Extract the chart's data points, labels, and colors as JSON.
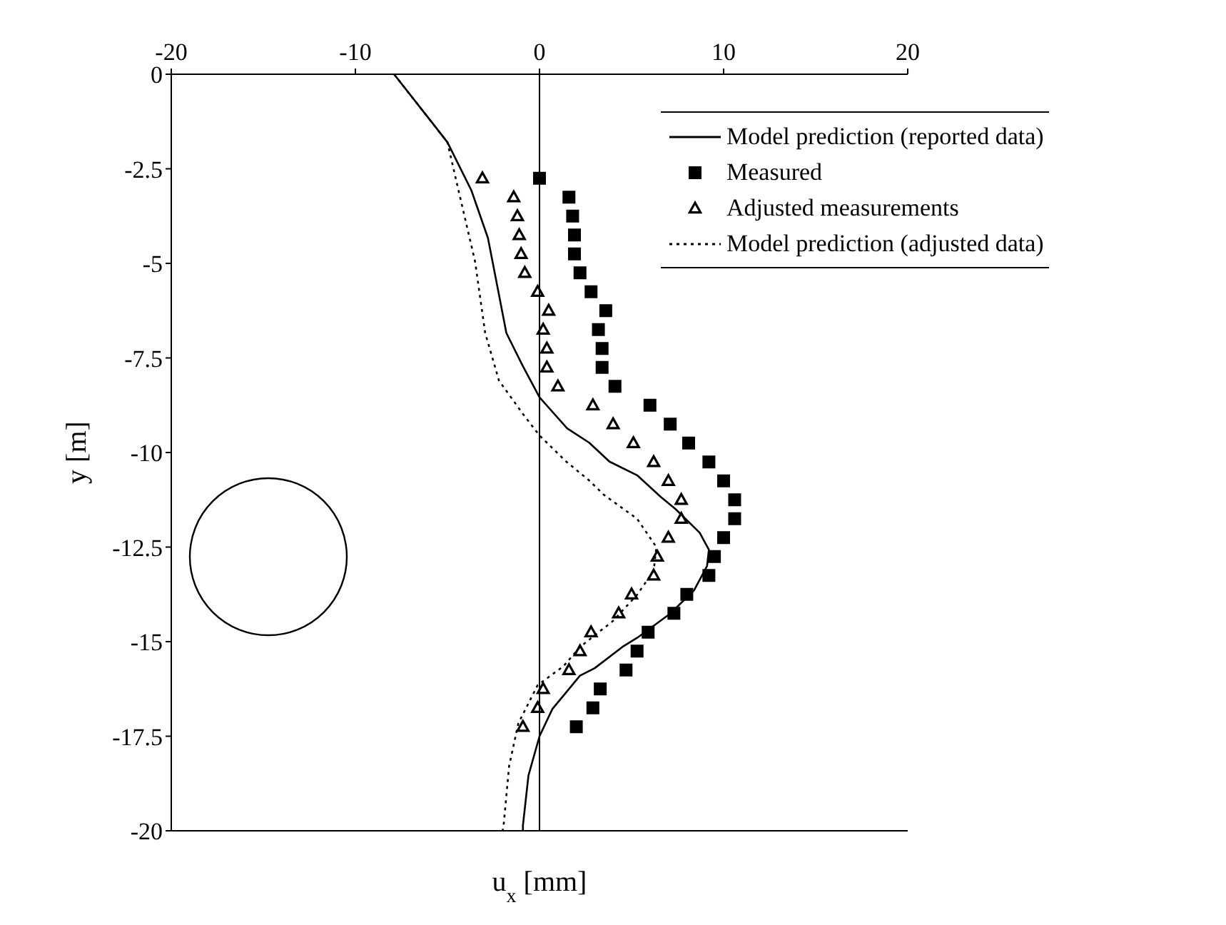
{
  "chart_data": {
    "type": "line",
    "xlabel": "u$_{x}$ [mm]",
    "ylabel": "y [m]",
    "xlim": [
      -20,
      20
    ],
    "xticks": [
      -20,
      -10,
      0,
      10,
      20
    ],
    "ylim": [
      -20,
      0
    ],
    "yticks": [
      -20,
      -17.5,
      -15,
      -12.5,
      -10,
      -7.5,
      -5,
      -2.5,
      0
    ],
    "grid": false,
    "legend": "top right",
    "ref_lines": [
      {
        "axis": "x",
        "value": 0,
        "color": "#000000",
        "line_style": "solid"
      }
    ],
    "series": [
      {
        "name": "Model prediction (reported data)",
        "color": "#000000",
        "line_style": "solid",
        "marker": "none",
        "x": [
          -7.9,
          -5.8,
          -5.0,
          -3.7,
          -2.8,
          -2.3,
          -1.8,
          -0.9,
          0,
          1.5,
          2.7,
          3.8,
          5.3,
          6.6,
          7.4,
          8.7,
          9.2,
          9.1,
          8.4,
          7.1,
          5.3,
          4.5,
          3.0,
          2.2,
          0.7,
          0,
          -0.6,
          -0.9,
          -0.9
        ],
        "values": [
          0,
          -1.3,
          -1.8,
          -3.07,
          -4.33,
          -5.58,
          -6.84,
          -7.72,
          -8.54,
          -9.36,
          -9.74,
          -10.24,
          -10.6,
          -11.18,
          -11.5,
          -12.12,
          -12.57,
          -13.0,
          -13.64,
          -14.26,
          -14.9,
          -15.14,
          -15.7,
          -15.9,
          -16.78,
          -17.5,
          -18.54,
          -19.86,
          -20
        ]
      },
      {
        "name": "Measured",
        "type": "scatter",
        "color": "#000000",
        "marker": "square",
        "x": [
          0,
          1.6,
          1.8,
          1.9,
          1.9,
          2.2,
          2.8,
          3.6,
          3.2,
          3.4,
          3.4,
          4.1,
          6.0,
          7.1,
          8.1,
          9.2,
          10.0,
          10.6,
          10.6,
          10.0,
          9.5,
          9.2,
          8.0,
          7.3,
          5.9,
          5.3,
          4.7,
          3.3,
          2.9,
          2.0
        ],
        "values": [
          -2.75,
          -3.25,
          -3.75,
          -4.25,
          -4.75,
          -5.25,
          -5.75,
          -6.25,
          -6.75,
          -7.25,
          -7.75,
          -8.25,
          -8.75,
          -9.25,
          -9.75,
          -10.25,
          -10.75,
          -11.25,
          -11.75,
          -12.25,
          -12.75,
          -13.25,
          -13.75,
          -14.25,
          -14.75,
          -15.25,
          -15.75,
          -16.25,
          -16.75,
          -17.25
        ]
      },
      {
        "name": "Adjusted measurements",
        "type": "scatter",
        "color": "#000000",
        "marker": "triangle",
        "x": [
          -3.1,
          -1.4,
          -1.2,
          -1.1,
          -1.0,
          -0.8,
          -0.1,
          0.5,
          0.2,
          0.4,
          0.4,
          1.0,
          2.9,
          4.0,
          5.1,
          6.2,
          7.0,
          7.7,
          7.7,
          7.0,
          6.4,
          6.2,
          5.0,
          4.3,
          2.8,
          2.2,
          1.6,
          0.2,
          -0.1,
          -0.9
        ],
        "values": [
          -2.75,
          -3.25,
          -3.75,
          -4.25,
          -4.75,
          -5.25,
          -5.75,
          -6.25,
          -6.75,
          -7.25,
          -7.75,
          -8.25,
          -8.75,
          -9.25,
          -9.75,
          -10.25,
          -10.75,
          -11.25,
          -11.75,
          -12.25,
          -12.75,
          -13.25,
          -13.75,
          -14.25,
          -14.75,
          -15.25,
          -15.75,
          -16.25,
          -16.75,
          -17.25
        ]
      },
      {
        "name": "Model prediction (adjusted data)",
        "color": "#000000",
        "line_style": "dotted",
        "marker": "none",
        "x": [
          -7.9,
          -5.0,
          -4.4,
          -3.5,
          -2.95,
          -2.2,
          -0.9,
          0,
          1.45,
          2.7,
          3.5,
          5.3,
          6.35,
          6.2,
          5.3,
          4.0,
          2.2,
          1.3,
          -0.1,
          -1.15,
          -1.65,
          -1.95,
          -2.0
        ],
        "values": [
          0,
          -1.8,
          -3.07,
          -4.95,
          -6.84,
          -8.1,
          -8.98,
          -9.55,
          -10.24,
          -10.74,
          -11.12,
          -11.75,
          -12.5,
          -13.13,
          -13.76,
          -14.45,
          -15.14,
          -15.65,
          -16.15,
          -17.16,
          -18.29,
          -19.86,
          -20
        ]
      }
    ]
  }
}
